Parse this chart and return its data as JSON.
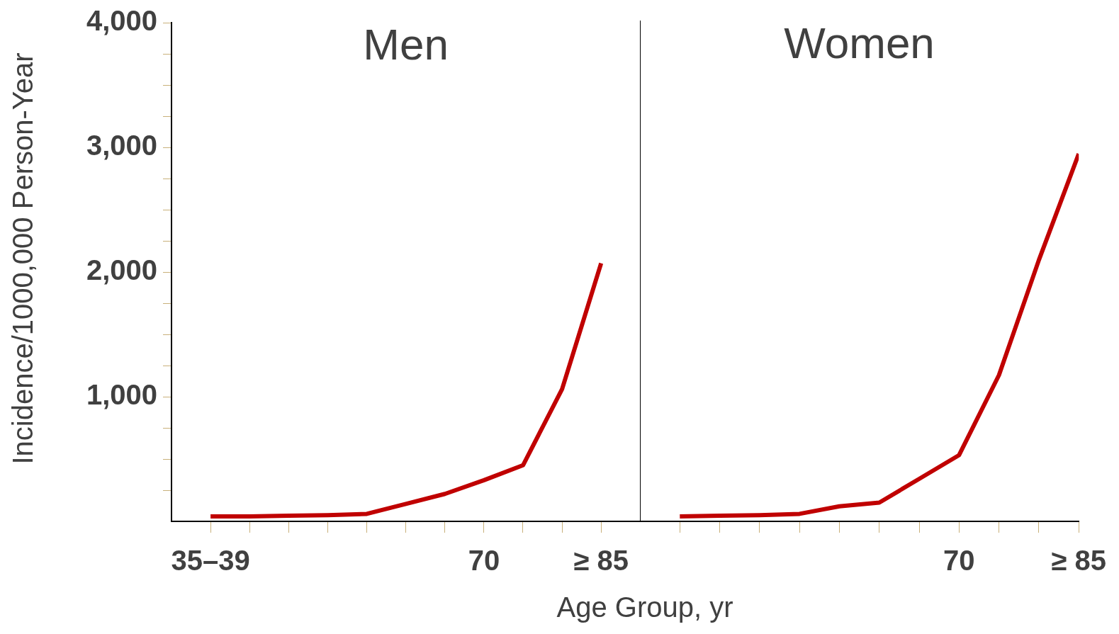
{
  "chart_data": [
    {
      "type": "line",
      "title": "Men",
      "xlabel": "Age Group, yr",
      "ylabel": "Incidence/1000,000 Person-Year",
      "categories": [
        "35–39",
        null,
        null,
        null,
        null,
        null,
        null,
        "70",
        null,
        null,
        "≥ 85"
      ],
      "series": [
        {
          "color": "#c00000",
          "values": [
            40,
            40,
            45,
            50,
            60,
            140,
            220,
            330,
            450,
            1060,
            2070
          ]
        }
      ],
      "ylim": [
        0,
        4000
      ],
      "yticks": [
        {
          "value": 250,
          "label": null
        },
        {
          "value": 500,
          "label": null
        },
        {
          "value": 750,
          "label": null
        },
        {
          "value": 1000,
          "label": "1,000"
        },
        {
          "value": 1250,
          "label": null
        },
        {
          "value": 1500,
          "label": null
        },
        {
          "value": 1750,
          "label": null
        },
        {
          "value": 2000,
          "label": "2,000"
        },
        {
          "value": 2250,
          "label": null
        },
        {
          "value": 2500,
          "label": null
        },
        {
          "value": 2750,
          "label": null
        },
        {
          "value": 3000,
          "label": "3,000"
        },
        {
          "value": 3250,
          "label": null
        },
        {
          "value": 3500,
          "label": null
        },
        {
          "value": 3750,
          "label": null
        },
        {
          "value": 4000,
          "label": "4,000"
        }
      ]
    },
    {
      "type": "line",
      "title": "Women",
      "categories": [
        null,
        null,
        null,
        null,
        null,
        null,
        null,
        "70",
        null,
        null,
        "≥ 85"
      ],
      "series": [
        {
          "color": "#c00000",
          "values": [
            40,
            45,
            50,
            60,
            120,
            150,
            340,
            530,
            1170,
            2090,
            2940
          ]
        }
      ],
      "ylim": [
        0,
        4000
      ],
      "tick_labels": "x"
    }
  ]
}
